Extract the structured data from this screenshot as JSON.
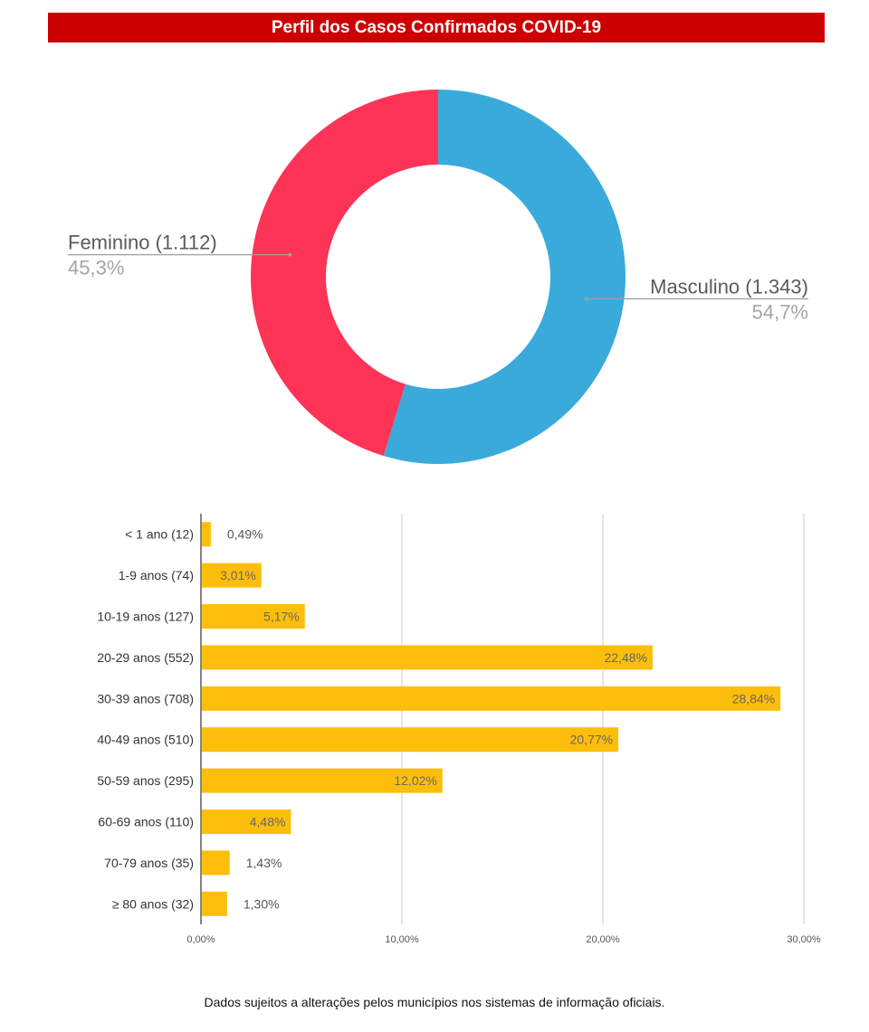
{
  "header": {
    "title": "Perfil dos Casos Confirmados COVID-19"
  },
  "footnote": "Dados sujeitos a alterações pelos municípios nos sistemas de informação oficiais.",
  "chart_data": [
    {
      "type": "pie",
      "donut": true,
      "title": "",
      "slices": [
        {
          "name": "Masculino",
          "value": 1343,
          "label": "Masculino (1.343)",
          "percent": 54.7,
          "percent_label": "54,7%",
          "color": "#3aaadb"
        },
        {
          "name": "Feminino",
          "value": 1112,
          "label": "Feminino (1.112)",
          "percent": 45.3,
          "percent_label": "45,3%",
          "color": "#fd3456"
        }
      ]
    },
    {
      "type": "bar",
      "orientation": "horizontal",
      "title": "",
      "color": "#fdbe0b",
      "categories": [
        "< 1 ano (12)",
        "1-9 anos (74)",
        "10-19 anos (127)",
        "20-29 anos (552)",
        "30-39 anos (708)",
        "40-49 anos (510)",
        "50-59 anos (295)",
        "60-69 anos (110)",
        "70-79 anos (35)",
        "≥ 80 anos (32)"
      ],
      "values": [
        0.49,
        3.01,
        5.17,
        22.48,
        28.84,
        20.77,
        12.02,
        4.48,
        1.43,
        1.3
      ],
      "value_labels": [
        "0,49%",
        "3,01%",
        "5,17%",
        "22,48%",
        "28,84%",
        "20,77%",
        "12,02%",
        "4,48%",
        "1,43%",
        "1,30%"
      ],
      "xlim": [
        0,
        30
      ],
      "xticks": [
        0,
        10,
        20,
        30
      ],
      "xtick_labels": [
        "0,00%",
        "10,00%",
        "20,00%",
        "30,00%"
      ],
      "grid": true
    }
  ]
}
